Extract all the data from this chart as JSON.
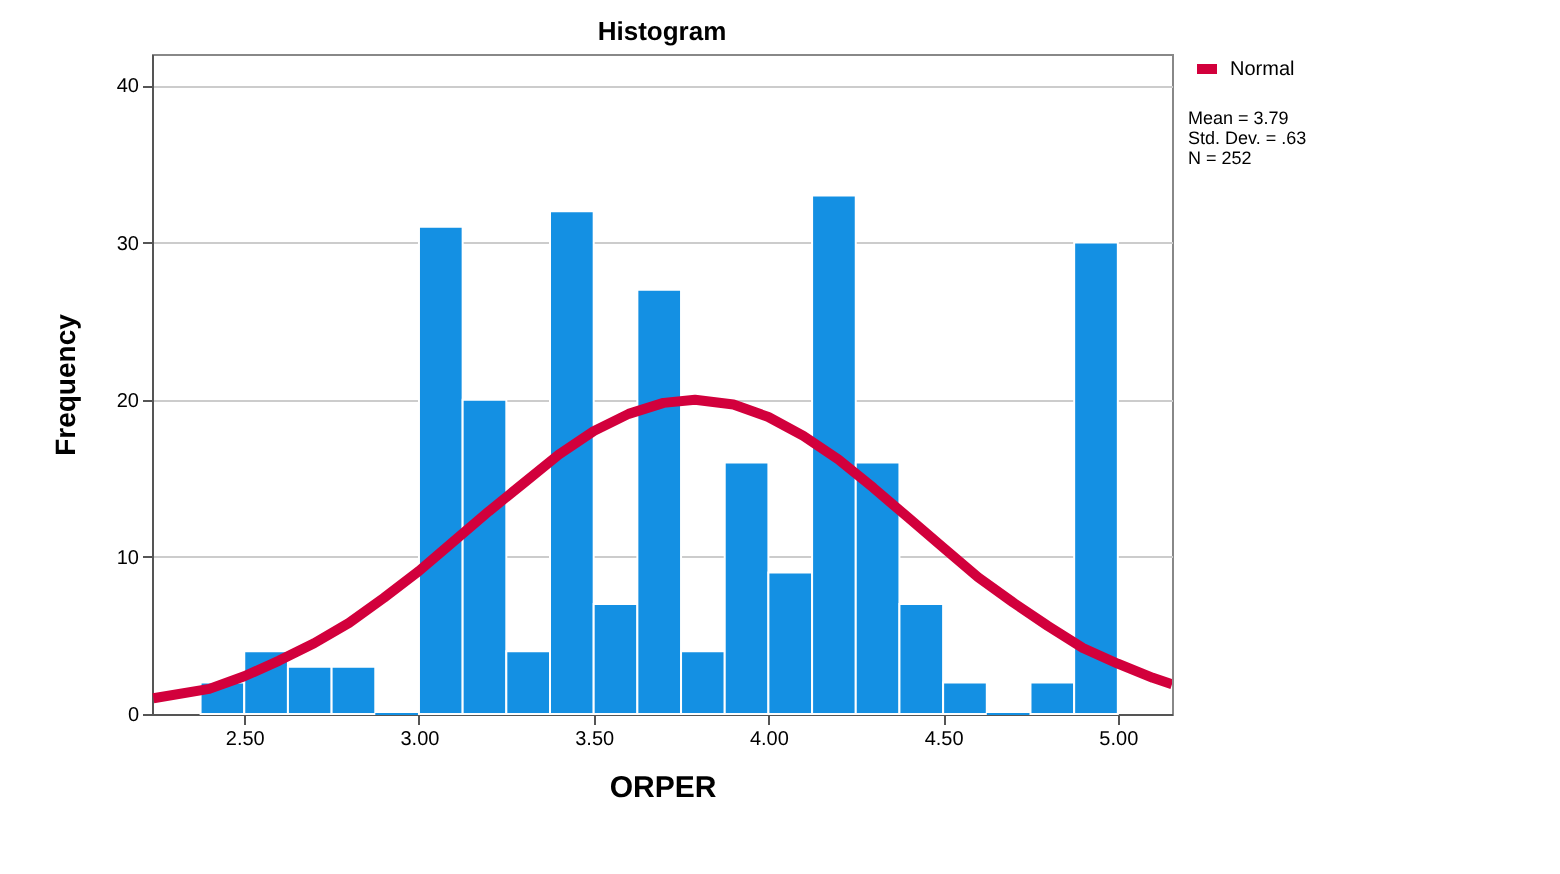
{
  "chart_data": {
    "type": "histogram",
    "title": "Histogram",
    "xlabel": "ORPER",
    "ylabel": "Frequency",
    "bins": [
      2.375,
      2.5,
      2.625,
      2.75,
      2.875,
      3.0,
      3.125,
      3.25,
      3.375,
      3.5,
      3.625,
      3.75,
      3.875,
      4.0,
      4.125,
      4.25,
      4.375,
      4.5,
      4.625,
      4.75,
      4.875,
      5.0
    ],
    "values": [
      2,
      4,
      3,
      3,
      0,
      31,
      20,
      4,
      32,
      7,
      27,
      4,
      16,
      9,
      33,
      16,
      7,
      2,
      0,
      2,
      30
    ],
    "color": "#1490e3",
    "series": [
      {
        "type": "line",
        "name": "Normal",
        "color": "#d2003c",
        "x": [
          2.24,
          2.4,
          2.5,
          2.6,
          2.7,
          2.8,
          2.9,
          3.0,
          3.1,
          3.2,
          3.3,
          3.4,
          3.5,
          3.6,
          3.7,
          3.79,
          3.9,
          4.0,
          4.1,
          4.2,
          4.3,
          4.4,
          4.5,
          4.6,
          4.7,
          4.8,
          4.9,
          5.0,
          5.1,
          5.155
        ],
        "values": [
          1.0,
          1.6,
          2.4,
          3.4,
          4.5,
          5.8,
          7.4,
          9.1,
          11.0,
          12.9,
          14.7,
          16.5,
          18.0,
          19.1,
          19.8,
          20.0,
          19.7,
          18.9,
          17.7,
          16.2,
          14.4,
          12.5,
          10.6,
          8.7,
          7.1,
          5.6,
          4.2,
          3.2,
          2.3,
          1.9
        ]
      }
    ],
    "xlim": [
      2.236,
      5.155
    ],
    "xticks": [
      {
        "value": 2.5,
        "label": "2.50"
      },
      {
        "value": 3.0,
        "label": "3.00"
      },
      {
        "value": 3.5,
        "label": "3.50"
      },
      {
        "value": 4.0,
        "label": "4.00"
      },
      {
        "value": 4.5,
        "label": "4.50"
      },
      {
        "value": 5.0,
        "label": "5.00"
      }
    ],
    "ylim": [
      0,
      42
    ],
    "yticks": [
      0,
      10,
      20,
      30,
      40
    ],
    "grid": "y",
    "legend": "top right",
    "annotations": [
      "Mean = 3.79",
      "Std. Dev. = .63",
      "N = 252"
    ]
  }
}
